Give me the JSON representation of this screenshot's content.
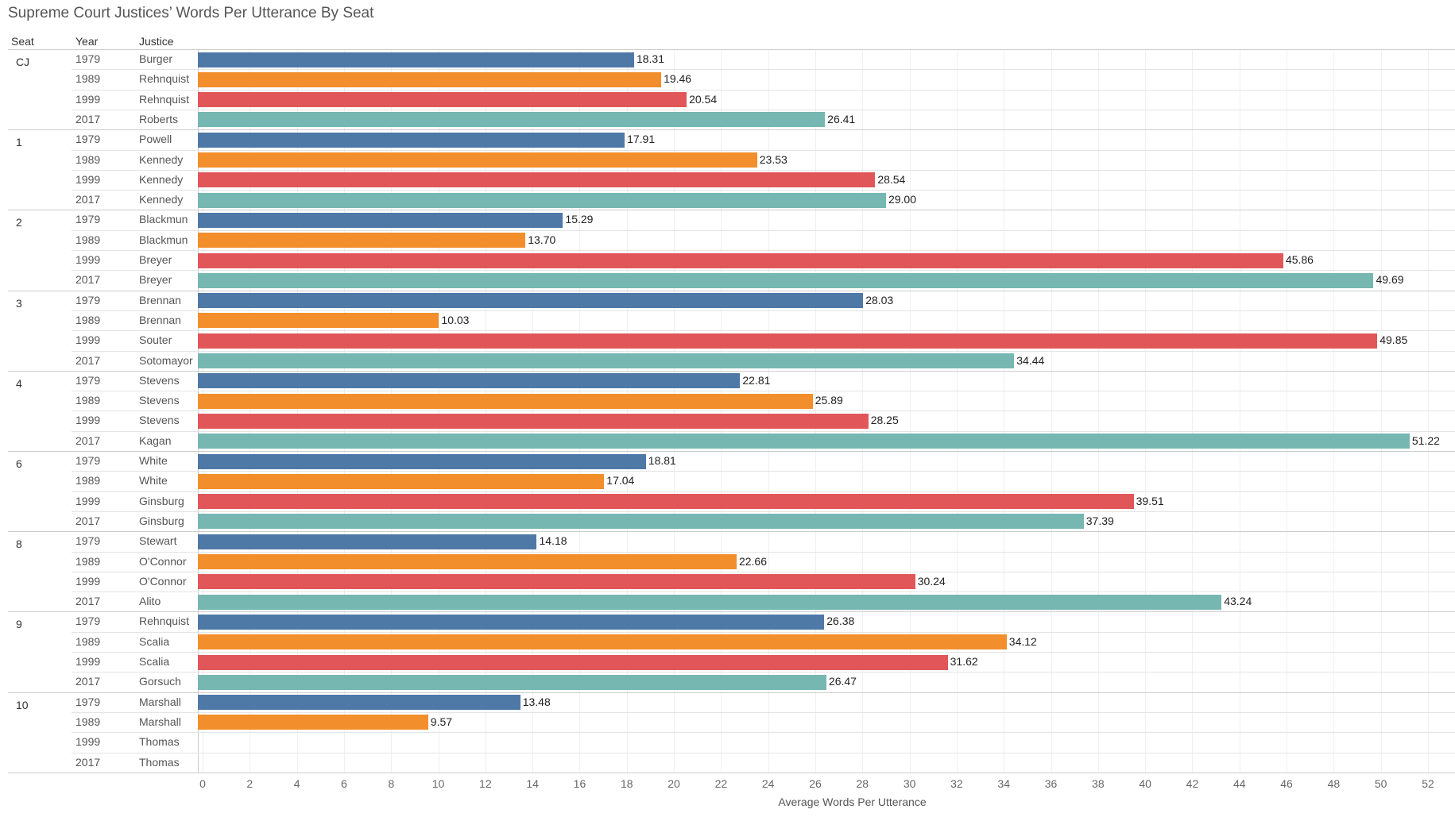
{
  "chart_data": {
    "type": "bar",
    "title": "Supreme Court Justices’ Words Per Utterance By Seat",
    "columns": [
      "Seat",
      "Year",
      "Justice"
    ],
    "xlabel": "Average Words Per Utterance",
    "xlim": [
      0,
      52
    ],
    "ticks": [
      "0",
      "2",
      "4",
      "6",
      "8",
      "10",
      "12",
      "14",
      "16",
      "18",
      "20",
      "22",
      "24",
      "26",
      "28",
      "30",
      "32",
      "34",
      "36",
      "38",
      "40",
      "42",
      "44",
      "46",
      "48",
      "50",
      "52"
    ],
    "colors": {
      "1979": "#4e79a7",
      "1989": "#f28e2b",
      "1999": "#e15759",
      "2017": "#76b7b2"
    },
    "groups": [
      {
        "seat": "CJ",
        "rows": [
          [
            "1979",
            "Burger",
            18.31
          ],
          [
            "1989",
            "Rehnquist",
            19.46
          ],
          [
            "1999",
            "Rehnquist",
            20.54
          ],
          [
            "2017",
            "Roberts",
            26.41
          ]
        ]
      },
      {
        "seat": "1",
        "rows": [
          [
            "1979",
            "Powell",
            17.91
          ],
          [
            "1989",
            "Kennedy",
            23.53
          ],
          [
            "1999",
            "Kennedy",
            28.54
          ],
          [
            "2017",
            "Kennedy",
            29.0
          ]
        ]
      },
      {
        "seat": "2",
        "rows": [
          [
            "1979",
            "Blackmun",
            15.29
          ],
          [
            "1989",
            "Blackmun",
            13.7
          ],
          [
            "1999",
            "Breyer",
            45.86
          ],
          [
            "2017",
            "Breyer",
            49.69
          ]
        ]
      },
      {
        "seat": "3",
        "rows": [
          [
            "1979",
            "Brennan",
            28.03
          ],
          [
            "1989",
            "Brennan",
            10.03
          ],
          [
            "1999",
            "Souter",
            49.85
          ],
          [
            "2017",
            "Sotomayor",
            34.44
          ]
        ]
      },
      {
        "seat": "4",
        "rows": [
          [
            "1979",
            "Stevens",
            22.81
          ],
          [
            "1989",
            "Stevens",
            25.89
          ],
          [
            "1999",
            "Stevens",
            28.25
          ],
          [
            "2017",
            "Kagan",
            51.22
          ]
        ]
      },
      {
        "seat": "6",
        "rows": [
          [
            "1979",
            "White",
            18.81
          ],
          [
            "1989",
            "White",
            17.04
          ],
          [
            "1999",
            "Ginsburg",
            39.51
          ],
          [
            "2017",
            "Ginsburg",
            37.39
          ]
        ]
      },
      {
        "seat": "8",
        "rows": [
          [
            "1979",
            "Stewart",
            14.18
          ],
          [
            "1989",
            "O'Connor",
            22.66
          ],
          [
            "1999",
            "O'Connor",
            30.24
          ],
          [
            "2017",
            "Alito",
            43.24
          ]
        ]
      },
      {
        "seat": "9",
        "rows": [
          [
            "1979",
            "Rehnquist",
            26.38
          ],
          [
            "1989",
            "Scalia",
            34.12
          ],
          [
            "1999",
            "Scalia",
            31.62
          ],
          [
            "2017",
            "Gorsuch",
            26.47
          ]
        ]
      },
      {
        "seat": "10",
        "rows": [
          [
            "1979",
            "Marshall",
            13.48
          ],
          [
            "1989",
            "Marshall",
            9.57
          ],
          [
            "1999",
            "Thomas",
            null
          ],
          [
            "2017",
            "Thomas",
            null
          ]
        ]
      }
    ]
  }
}
